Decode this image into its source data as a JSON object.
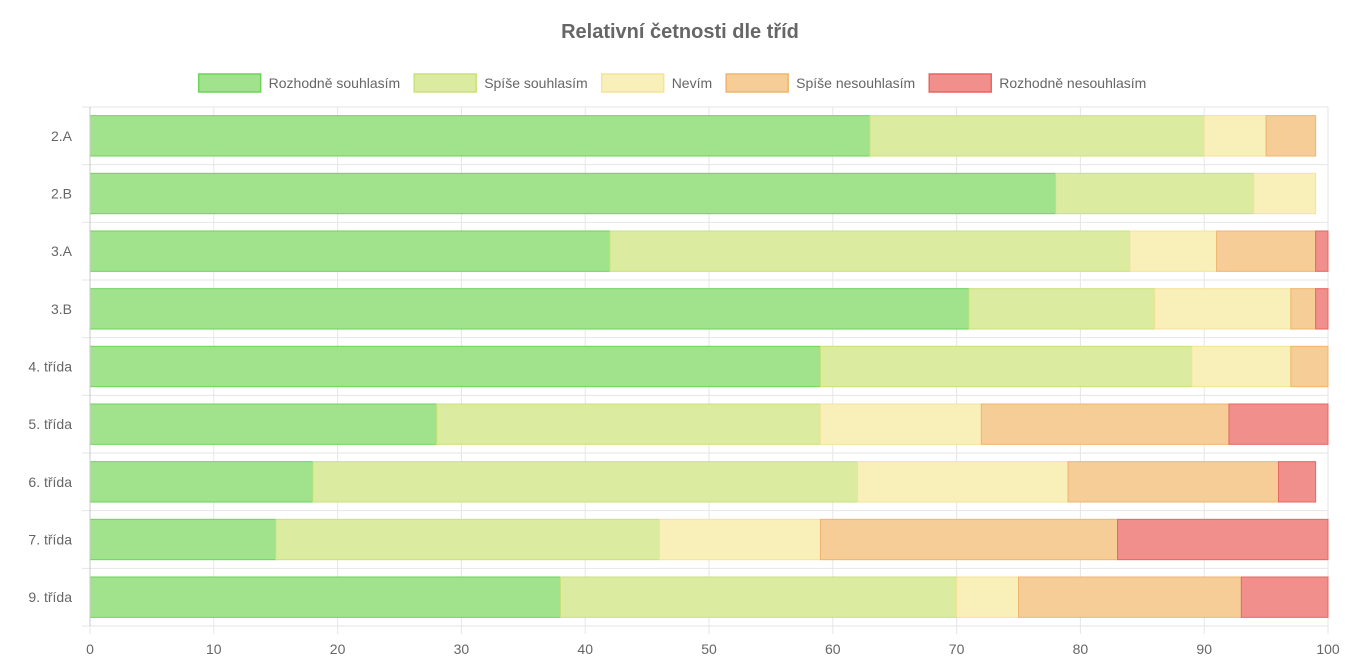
{
  "chart_data": {
    "type": "bar",
    "orientation": "horizontal",
    "stacked": true,
    "title": "Relativní četnosti dle tříd",
    "xlabel": "",
    "ylabel": "",
    "xlim": [
      0,
      100
    ],
    "x_ticks": [
      0,
      10,
      20,
      30,
      40,
      50,
      60,
      70,
      80,
      90,
      100
    ],
    "grid": true,
    "legend_position": "top",
    "categories": [
      "2.A",
      "2.B",
      "3.A",
      "3.B",
      "4. třída",
      "5. třída",
      "6. třída",
      "7. třída",
      "9. třída"
    ],
    "series": [
      {
        "name": "Rozhodně souhlasím",
        "fill": "#a1e38d",
        "stroke": "#6fd35a",
        "values": [
          63,
          78,
          42,
          71,
          59,
          28,
          18,
          15,
          38
        ]
      },
      {
        "name": "Spíše souhlasím",
        "fill": "#dbeca0",
        "stroke": "#c9e27a",
        "values": [
          27,
          16,
          42,
          15,
          30,
          31,
          44,
          31,
          32
        ]
      },
      {
        "name": "Nevím",
        "fill": "#f9efb8",
        "stroke": "#f4e39a",
        "values": [
          5,
          5,
          7,
          11,
          8,
          13,
          17,
          13,
          5
        ]
      },
      {
        "name": "Spíše nesouhlasím",
        "fill": "#f6cd96",
        "stroke": "#efb56e",
        "values": [
          4,
          0,
          8,
          2,
          3,
          20,
          17,
          24,
          18
        ]
      },
      {
        "name": "Rozhodně nesouhlasím",
        "fill": "#f08f8c",
        "stroke": "#e66764",
        "values": [
          0,
          0,
          1,
          1,
          0,
          8,
          3,
          17,
          7
        ]
      }
    ]
  }
}
